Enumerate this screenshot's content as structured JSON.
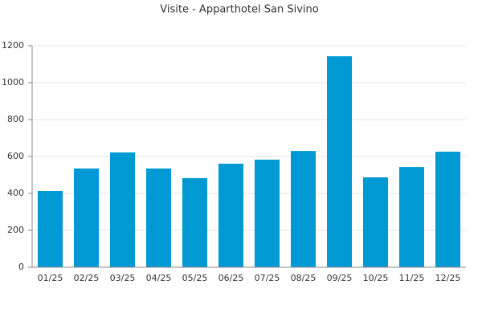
{
  "chart_data": {
    "type": "bar",
    "title": "Visite - Apparthotel San Sivino",
    "categories": [
      "01/25",
      "02/25",
      "03/25",
      "04/25",
      "05/25",
      "06/25",
      "07/25",
      "08/25",
      "09/25",
      "10/25",
      "11/25",
      "12/25"
    ],
    "values": [
      413,
      535,
      622,
      535,
      483,
      561,
      583,
      630,
      1143,
      487,
      543,
      626
    ],
    "color": "#0099d4",
    "ylim": [
      0,
      1200
    ],
    "yticks": [
      0,
      200,
      400,
      600,
      800,
      1000,
      1200
    ],
    "grid": true
  }
}
